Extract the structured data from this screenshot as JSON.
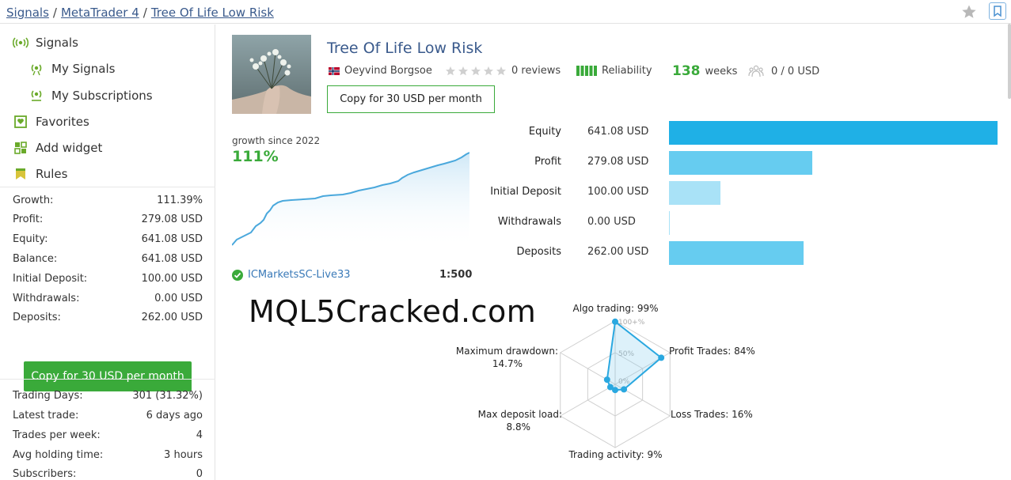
{
  "breadcrumb": [
    "Signals",
    "MetaTrader 4",
    "Tree Of Life Low Risk"
  ],
  "sidebar": {
    "nav": [
      {
        "label": "Signals",
        "icon": "signal-icon"
      },
      {
        "label": "My Signals",
        "icon": "signal-icon"
      },
      {
        "label": "My Subscriptions",
        "icon": "subscription-icon"
      },
      {
        "label": "Favorites",
        "icon": "favorites-icon"
      },
      {
        "label": "Add widget",
        "icon": "widget-icon"
      },
      {
        "label": "Rules",
        "icon": "rules-icon"
      }
    ],
    "stats": [
      {
        "label": "Growth:",
        "value": "111.39%"
      },
      {
        "label": "Profit:",
        "value": "279.08 USD"
      },
      {
        "label": "Equity:",
        "value": "641.08 USD"
      },
      {
        "label": "Balance:",
        "value": "641.08 USD"
      },
      {
        "label": "Initial Deposit:",
        "value": "100.00 USD"
      },
      {
        "label": "Withdrawals:",
        "value": "0.00 USD"
      },
      {
        "label": "Deposits:",
        "value": "262.00 USD"
      }
    ],
    "copy_button": "Copy for 30 USD per month",
    "stats2": [
      {
        "label": "Trading Days:",
        "value": "301 (31.32%)"
      },
      {
        "label": "Latest trade:",
        "value": "6 days ago"
      },
      {
        "label": "Trades per week:",
        "value": "4"
      },
      {
        "label": "Avg holding time:",
        "value": "3 hours"
      },
      {
        "label": "Subscribers:",
        "value": "0"
      }
    ]
  },
  "signal": {
    "title": "Tree Of Life Low Risk",
    "author": "Oeyvind Borgsoe",
    "reviews": "0 reviews",
    "reliability": "Reliability",
    "weeks_value": "138",
    "weeks_label": "weeks",
    "subscribers_funds": "0 / 0 USD",
    "copy_button": "Copy for 30 USD per month",
    "growth_label": "growth since 2022",
    "growth_value": "111%",
    "broker": "ICMarketsSC-Live33",
    "leverage": "1:500"
  },
  "balances": [
    {
      "label": "Equity",
      "value": "641.08 USD",
      "amount": 641.08,
      "color": "#1fb0e6"
    },
    {
      "label": "Profit",
      "value": "279.08 USD",
      "amount": 279.08,
      "color": "#66ccf0"
    },
    {
      "label": "Initial Deposit",
      "value": "100.00 USD",
      "amount": 100.0,
      "color": "#a9e2f7"
    },
    {
      "label": "Withdrawals",
      "value": "0.00 USD",
      "amount": 0.0,
      "color": "#a9e2f7"
    },
    {
      "label": "Deposits",
      "value": "262.00 USD",
      "amount": 262.0,
      "color": "#66ccf0"
    }
  ],
  "watermark": "MQL5Cracked.com",
  "radar": {
    "scale_labels": [
      "100+%",
      "50%",
      "0%"
    ],
    "axes": [
      {
        "label": "Algo trading: 99%",
        "value": 0.99
      },
      {
        "label": "Profit Trades: 84%",
        "value": 0.84
      },
      {
        "label": "Loss Trades: 16%",
        "value": 0.16
      },
      {
        "label": "Trading activity: 9%",
        "value": 0.09
      },
      {
        "label": "Max deposit load:",
        "label2": "8.8%",
        "value": 0.088
      },
      {
        "label": "Maximum drawdown:",
        "label2": "14.7%",
        "value": 0.147
      }
    ]
  }
}
